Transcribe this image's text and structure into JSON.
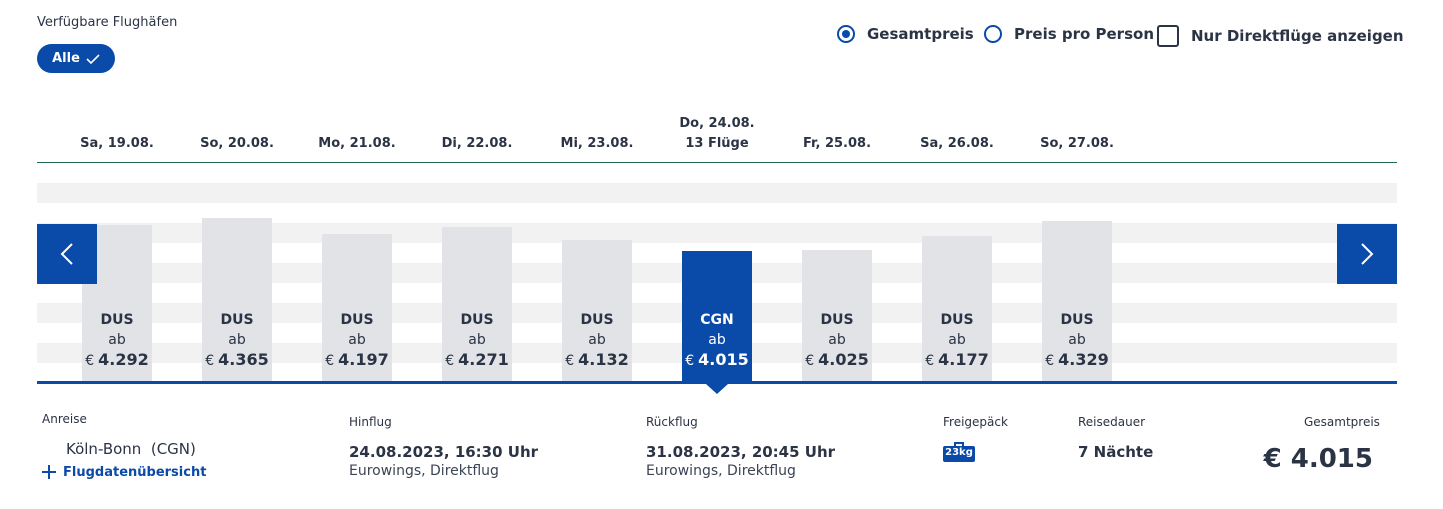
{
  "filters": {
    "airports_label": "Verfügbare Flughäfen",
    "all_label": "Alle",
    "total_price_label": "Gesamtpreis",
    "per_person_label": "Preis pro Person",
    "direct_only_label": "Nur Direktflüge anzeigen",
    "total_price_selected": true,
    "per_person_selected": false,
    "direct_only_checked": false
  },
  "dates": [
    {
      "line1": "",
      "line2": "Sa, 19.08."
    },
    {
      "line1": "",
      "line2": "So, 20.08."
    },
    {
      "line1": "",
      "line2": "Mo, 21.08."
    },
    {
      "line1": "",
      "line2": "Di, 22.08."
    },
    {
      "line1": "",
      "line2": "Mi, 23.08."
    },
    {
      "line1": "Do, 24.08.",
      "line2": "13 Flüge"
    },
    {
      "line1": "",
      "line2": "Fr, 25.08."
    },
    {
      "line1": "",
      "line2": "Sa, 26.08."
    },
    {
      "line1": "",
      "line2": "So, 27.08."
    }
  ],
  "bars": [
    {
      "code": "DUS",
      "ab": "ab",
      "currency": "€",
      "price": "4.292",
      "value": 4292
    },
    {
      "code": "DUS",
      "ab": "ab",
      "currency": "€",
      "price": "4.365",
      "value": 4365
    },
    {
      "code": "DUS",
      "ab": "ab",
      "currency": "€",
      "price": "4.197",
      "value": 4197
    },
    {
      "code": "DUS",
      "ab": "ab",
      "currency": "€",
      "price": "4.271",
      "value": 4271
    },
    {
      "code": "DUS",
      "ab": "ab",
      "currency": "€",
      "price": "4.132",
      "value": 4132
    },
    {
      "code": "CGN",
      "ab": "ab",
      "currency": "€",
      "price": "4.015",
      "value": 4015,
      "active": true
    },
    {
      "code": "DUS",
      "ab": "ab",
      "currency": "€",
      "price": "4.025",
      "value": 4025
    },
    {
      "code": "DUS",
      "ab": "ab",
      "currency": "€",
      "price": "4.177",
      "value": 4177
    },
    {
      "code": "DUS",
      "ab": "ab",
      "currency": "€",
      "price": "4.329",
      "value": 4329
    }
  ],
  "details": {
    "arrival_label": "Anreise",
    "arrival_value": "Köln-Bonn  (CGN)",
    "overview_link": "Flugdatenübersicht",
    "outbound_label": "Hinflug",
    "outbound_datetime": "24.08.2023, 16:30 Uhr",
    "outbound_info": "Eurowings, Direktflug",
    "return_label": "Rückflug",
    "return_datetime": "31.08.2023, 20:45 Uhr",
    "return_info": "Eurowings, Direktflug",
    "baggage_label": "Freigepäck",
    "baggage_value": "23kg",
    "duration_label": "Reisedauer",
    "duration_value": "7 Nächte",
    "total_label": "Gesamtpreis",
    "total_value": "€ 4.015"
  },
  "colors": {
    "accent": "#0a4aa8",
    "bar": "#e2e3e7",
    "text": "#2b3445"
  }
}
